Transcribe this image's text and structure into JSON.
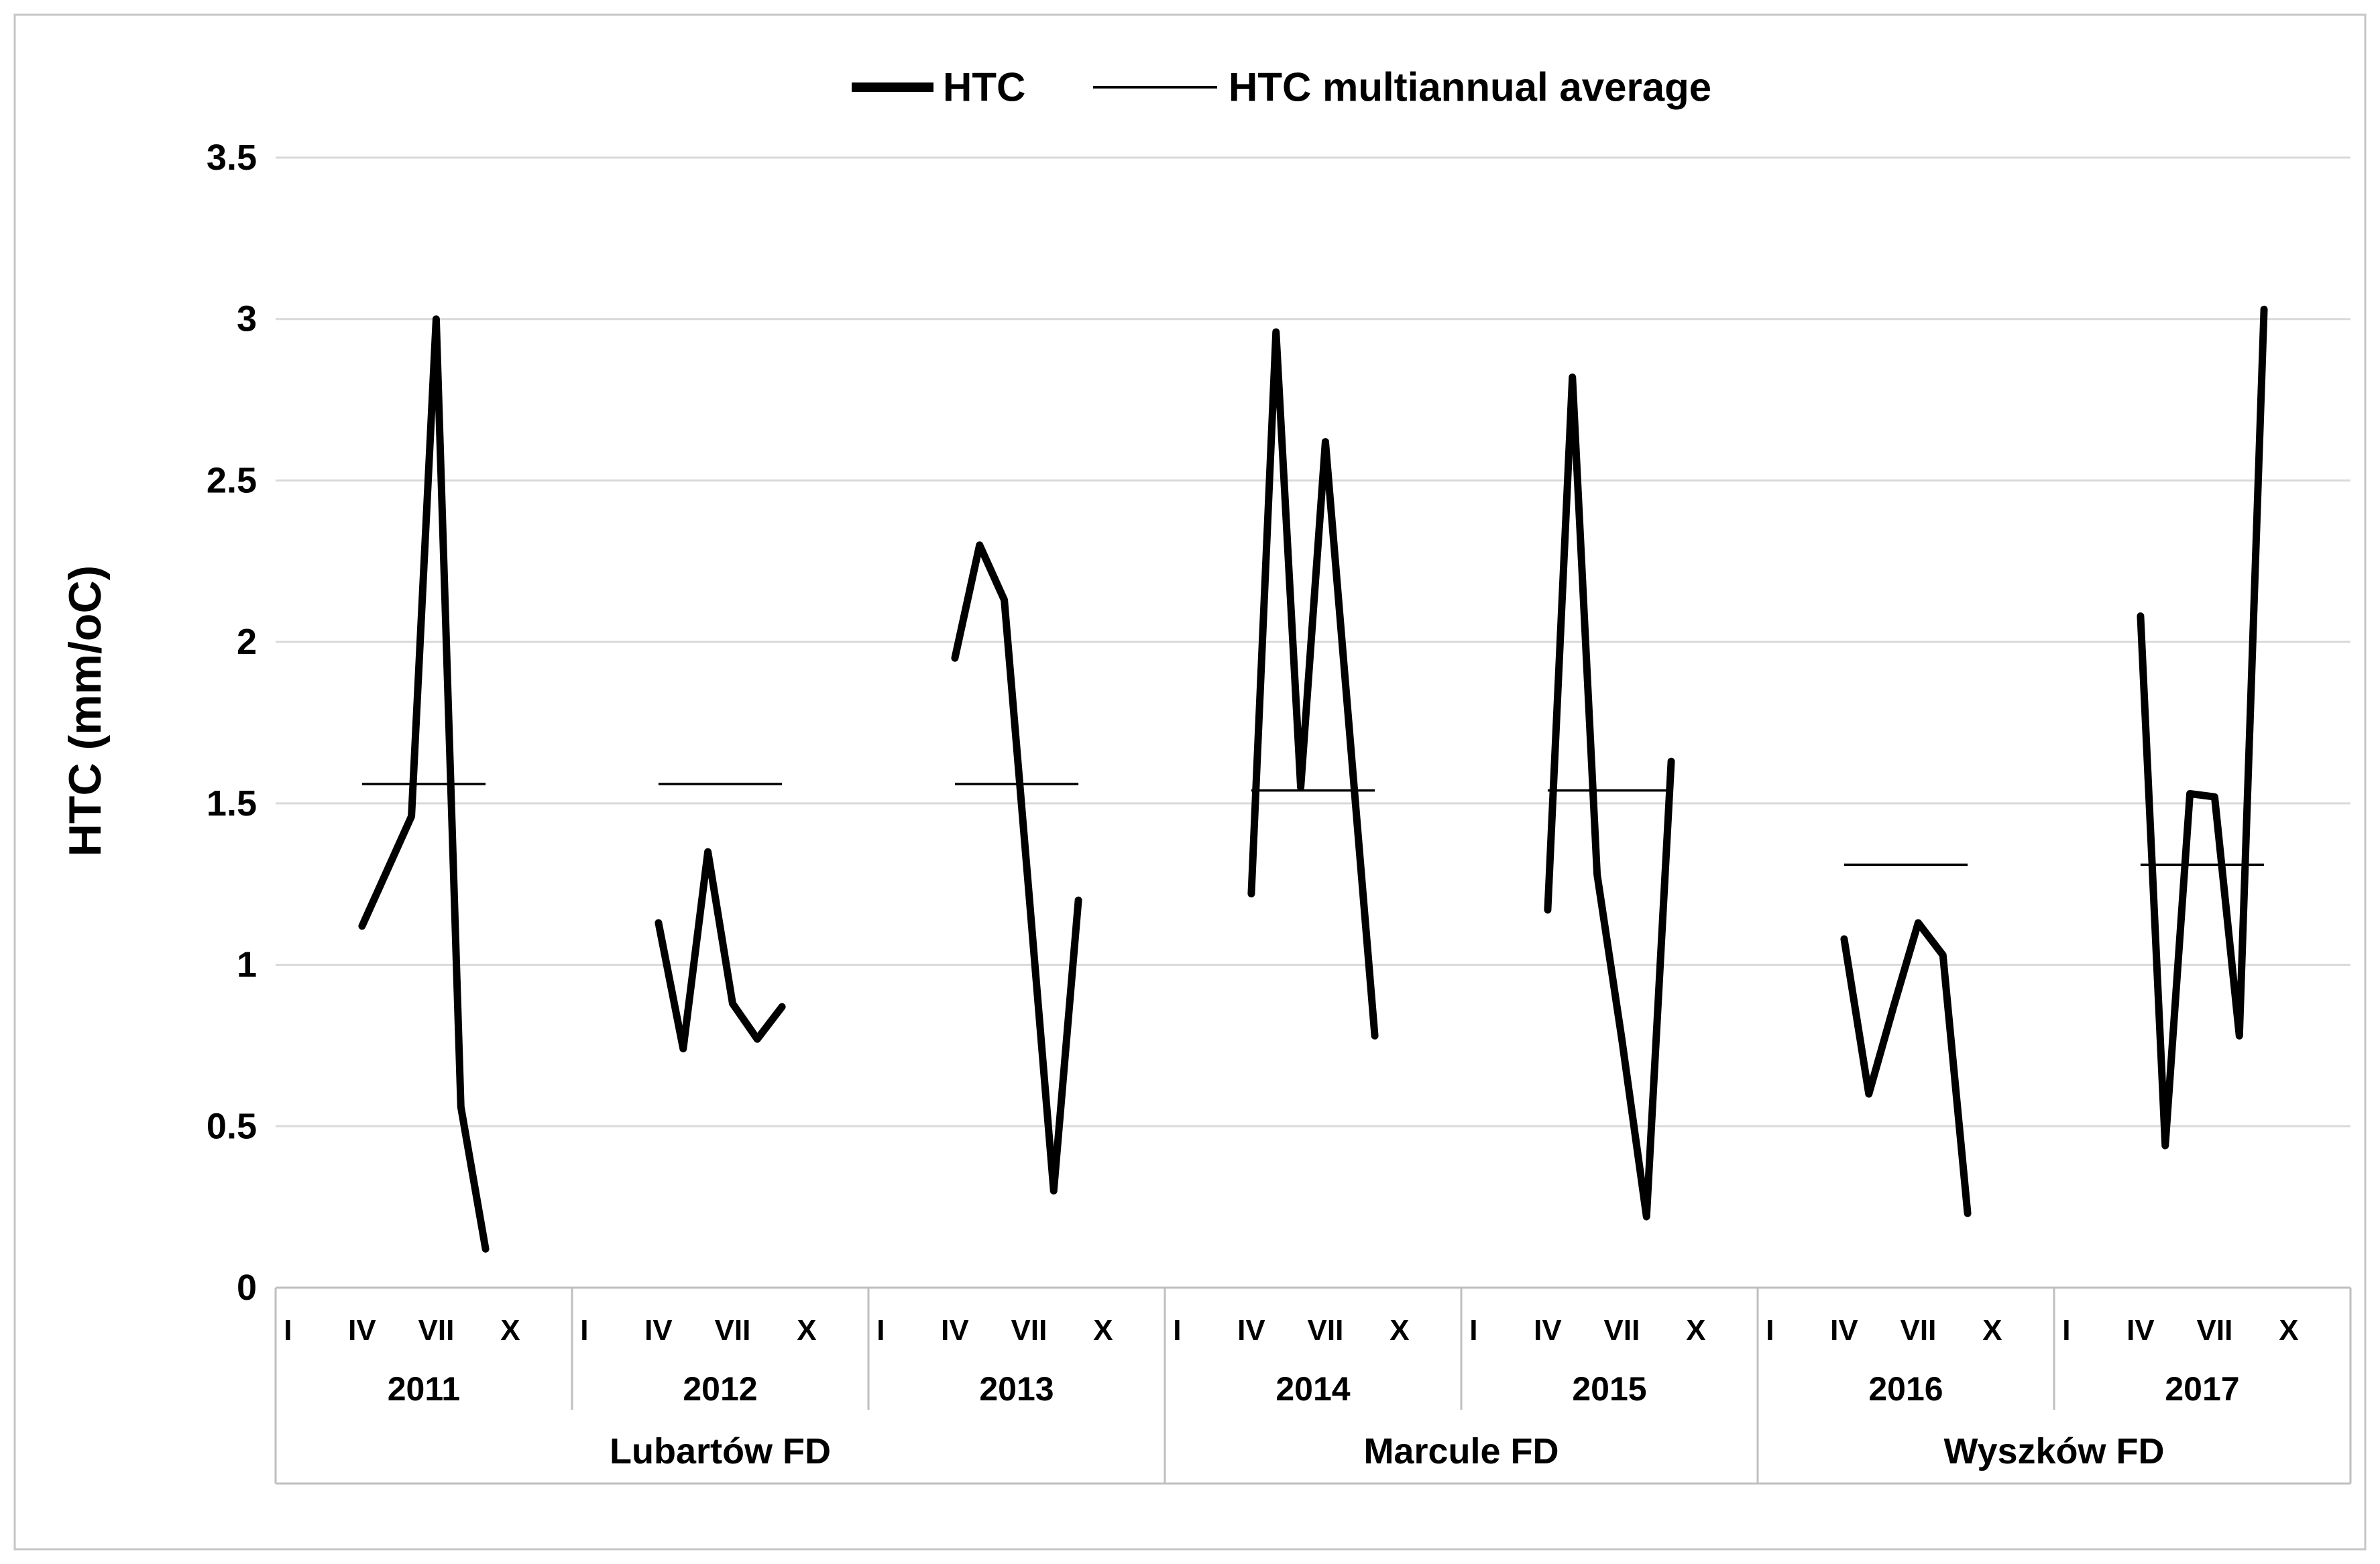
{
  "y_axis": {
    "title": "HTC (mm/oC)"
  },
  "legend": {
    "htc_label": "HTC",
    "avg_label": "HTC multiannual average"
  },
  "chart_data": {
    "type": "line",
    "title": "",
    "xlabel": "",
    "ylabel": "HTC (mm/oC)",
    "ylim": [
      0,
      3.5
    ],
    "ytick_labels": [
      "0",
      "0.5",
      "1",
      "1.5",
      "2",
      "2.5",
      "3",
      "3.5"
    ],
    "grid": "horizontal",
    "legend_position": "top-center",
    "x_month_tick_labels": [
      "I",
      "IV",
      "VII",
      "X"
    ],
    "x_month_tick_positions": [
      1,
      4,
      7,
      10
    ],
    "data_months": [
      4,
      5,
      6,
      7,
      8,
      9
    ],
    "data_month_names": [
      "IV",
      "V",
      "VI",
      "VII",
      "VIII",
      "IX"
    ],
    "series": [
      {
        "name": "HTC",
        "style": "thick",
        "color": "#000000"
      },
      {
        "name": "HTC multiannual average",
        "style": "thin",
        "color": "#000000"
      }
    ],
    "years": [
      {
        "year": "2011",
        "district": "Lubartów FD",
        "multiannual_avg": 1.56,
        "htc": [
          1.12,
          1.29,
          1.46,
          3.0,
          0.56,
          0.12
        ]
      },
      {
        "year": "2012",
        "district": "Lubartów FD",
        "multiannual_avg": 1.56,
        "htc": [
          1.13,
          0.74,
          1.35,
          0.88,
          0.77,
          0.87
        ]
      },
      {
        "year": "2013",
        "district": "Lubartów FD",
        "multiannual_avg": 1.56,
        "htc": [
          1.95,
          2.3,
          2.13,
          1.22,
          0.3,
          1.2
        ]
      },
      {
        "year": "2014",
        "district": "Marcule FD",
        "multiannual_avg": 1.54,
        "htc": [
          1.22,
          2.96,
          1.55,
          2.62,
          1.7,
          0.78
        ]
      },
      {
        "year": "2015",
        "district": "Marcule FD",
        "multiannual_avg": 1.54,
        "htc": [
          1.17,
          2.82,
          1.28,
          0.77,
          0.22,
          1.63
        ]
      },
      {
        "year": "2016",
        "district": "Wyszków FD",
        "multiannual_avg": 1.31,
        "htc": [
          1.08,
          0.6,
          0.87,
          1.13,
          1.03,
          0.23
        ]
      },
      {
        "year": "2017",
        "district": "Wyszków FD",
        "multiannual_avg": 1.31,
        "htc": [
          2.08,
          0.44,
          1.53,
          1.52,
          0.78,
          3.03
        ]
      }
    ],
    "districts": [
      {
        "name": "Lubartów FD",
        "years": [
          "2011",
          "2012",
          "2013"
        ],
        "multiannual_avg": 1.56
      },
      {
        "name": "Marcule FD",
        "years": [
          "2014",
          "2015"
        ],
        "multiannual_avg": 1.54
      },
      {
        "name": "Wyszków FD",
        "years": [
          "2016",
          "2017"
        ],
        "multiannual_avg": 1.31
      }
    ],
    "colors": {
      "series_line": "#000000",
      "average_line": "#000000",
      "gridline": "#d9d9d9",
      "axis_table_line": "#bfbfbf",
      "text": "#000000",
      "background": "#ffffff",
      "figure_border": "#c6c6c6"
    }
  }
}
